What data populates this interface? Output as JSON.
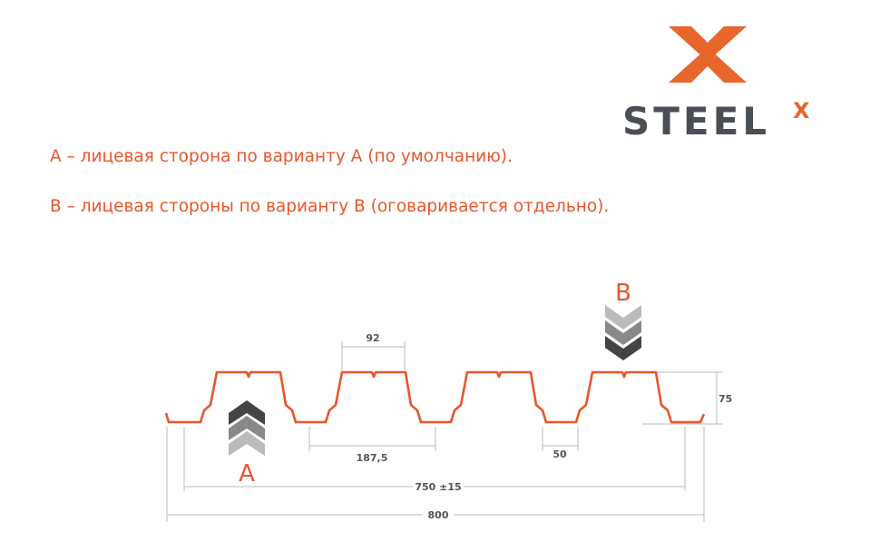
{
  "logo": {
    "text": "STEEL",
    "superscript": "X",
    "brand_color": "#e8662a",
    "text_color": "#4a4f55"
  },
  "notes": [
    "А – лицевая сторона по варианту А (по умолчанию).",
    "В – лицевая стороны по варианту В (оговаривается отдельно)."
  ],
  "diagram": {
    "profile_color": "#e8562a",
    "labels": {
      "side_a": "A",
      "side_b": "B"
    },
    "dimensions": {
      "top_width": "92",
      "pitch": "187,5",
      "bottom_width": "50",
      "height": "75",
      "working_width": "750 ±15",
      "total_width": "800"
    }
  }
}
